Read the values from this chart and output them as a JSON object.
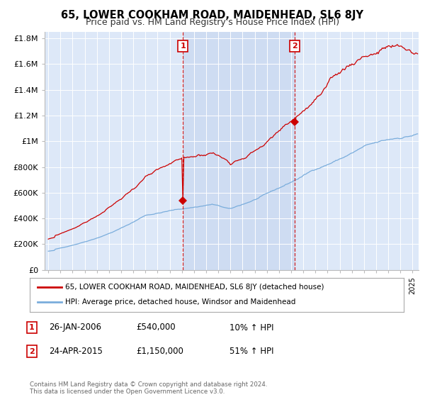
{
  "title": "65, LOWER COOKHAM ROAD, MAIDENHEAD, SL6 8JY",
  "subtitle": "Price paid vs. HM Land Registry's House Price Index (HPI)",
  "red_label": "65, LOWER COOKHAM ROAD, MAIDENHEAD, SL6 8JY (detached house)",
  "blue_label": "HPI: Average price, detached house, Windsor and Maidenhead",
  "annotation1_label": "1",
  "annotation1_date": "26-JAN-2006",
  "annotation1_price": "£540,000",
  "annotation1_hpi": "10% ↑ HPI",
  "annotation1_year": 2006.08,
  "annotation1_value": 540000,
  "annotation2_label": "2",
  "annotation2_date": "24-APR-2015",
  "annotation2_price": "£1,150,000",
  "annotation2_hpi": "51% ↑ HPI",
  "annotation2_year": 2015.3,
  "annotation2_value": 1150000,
  "footer": "Contains HM Land Registry data © Crown copyright and database right 2024.\nThis data is licensed under the Open Government Licence v3.0.",
  "ylim": [
    0,
    1850000
  ],
  "yticks": [
    0,
    200000,
    400000,
    600000,
    800000,
    1000000,
    1200000,
    1400000,
    1600000,
    1800000
  ],
  "ytick_labels": [
    "£0",
    "£200K",
    "£400K",
    "£600K",
    "£800K",
    "£1M",
    "£1.2M",
    "£1.4M",
    "£1.6M",
    "£1.8M"
  ],
  "plot_bg_color": "#dde8f8",
  "shade_color": "#c8d8f0",
  "red_color": "#cc0000",
  "blue_color": "#7aaddc",
  "grid_color": "#ffffff",
  "title_fontsize": 10.5,
  "subtitle_fontsize": 9
}
